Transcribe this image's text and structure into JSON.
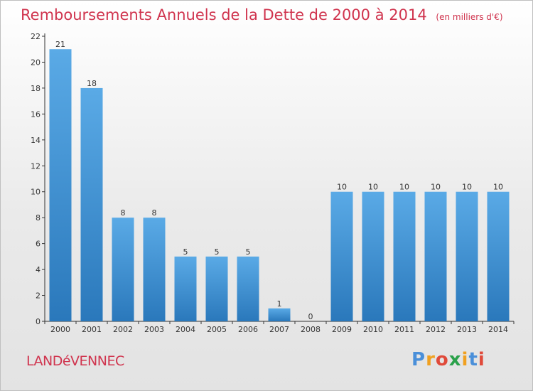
{
  "header": {
    "title": "Remboursements Annuels de la Dette de 2000 à 2014",
    "subtitle": "(en milliers d'€)"
  },
  "footer": {
    "location": "LANDéVENNEC",
    "logo_letters": [
      "P",
      "r",
      "o",
      "x",
      "i",
      "t",
      "i"
    ]
  },
  "colors": {
    "title": "#d0344e",
    "bar_light": "#5aaae6",
    "bar_dark": "#2a78bb",
    "axis": "#333333",
    "logo_letters": [
      "#4a8fd9",
      "#f0a020",
      "#e04a3a",
      "#2aa14a",
      "#f0a020",
      "#4a8fd9",
      "#e04a3a"
    ]
  },
  "chart_data": {
    "type": "bar",
    "categories": [
      "2000",
      "2001",
      "2002",
      "2003",
      "2004",
      "2005",
      "2006",
      "2007",
      "2008",
      "2009",
      "2010",
      "2011",
      "2012",
      "2013",
      "2014"
    ],
    "values": [
      21,
      18,
      8,
      8,
      5,
      5,
      5,
      1,
      0,
      10,
      10,
      10,
      10,
      10,
      10
    ],
    "data_labels": [
      "21",
      "18",
      "8",
      "8",
      "5",
      "5",
      "5",
      "1",
      "0",
      "10",
      "10",
      "10",
      "10",
      "10",
      "10"
    ],
    "yticks": [
      0,
      2,
      4,
      6,
      8,
      10,
      12,
      14,
      16,
      18,
      20,
      22
    ],
    "ylim": [
      0,
      22
    ],
    "grid": false,
    "title": "Remboursements Annuels de la Dette de 2000 à 2014",
    "xlabel": "",
    "ylabel": ""
  }
}
